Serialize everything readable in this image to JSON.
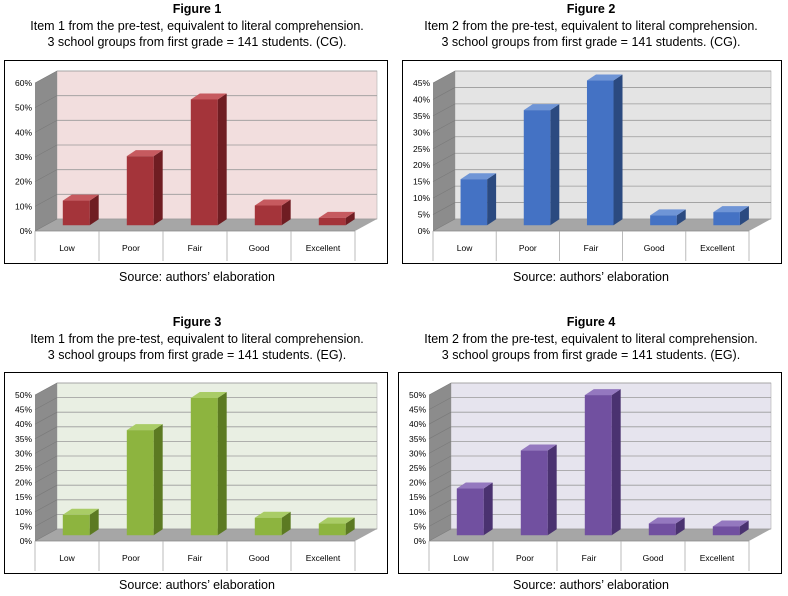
{
  "figures": [
    {
      "heading": "Figure 1",
      "line1": "Item 1 from the pre-test, equivalent to literal comprehension.",
      "line2": "3 school groups from first grade = 141 students. (CG).",
      "source": "Source: authors’ elaboration",
      "colors": {
        "front": "#a4343a",
        "side": "#6f1d22",
        "top": "#c65a5f",
        "wall": "#f2dede"
      },
      "chart_data": {
        "type": "bar",
        "categories": [
          "Low",
          "Poor",
          "Fair",
          "Good",
          "Excellent"
        ],
        "values": [
          10,
          28,
          51,
          8,
          3
        ],
        "yticks": [
          "0%",
          "10%",
          "20%",
          "30%",
          "40%",
          "50%",
          "60%"
        ],
        "ylim": [
          0,
          60
        ]
      }
    },
    {
      "heading": "Figure 2",
      "line1": "Item 2 from the pre-test, equivalent to literal comprehension.",
      "line2": "3 school groups from first grade = 141 students. (CG).",
      "source": "Source: authors’ elaboration",
      "colors": {
        "front": "#4472c4",
        "side": "#2b4a80",
        "top": "#6f95d6",
        "wall": "#e4e4e4"
      },
      "chart_data": {
        "type": "bar",
        "categories": [
          "Low",
          "Poor",
          "Fair",
          "Good",
          "Excellent"
        ],
        "values": [
          14,
          35,
          44,
          3,
          4
        ],
        "yticks": [
          "0%",
          "5%",
          "10%",
          "15%",
          "20%",
          "25%",
          "30%",
          "35%",
          "40%",
          "45%"
        ],
        "ylim": [
          0,
          45
        ]
      }
    },
    {
      "heading": "Figure 3",
      "line1": "Item 1 from the pre-test, equivalent to literal comprehension.",
      "line2": "3 school groups from first grade = 141 students. (EG).",
      "source": "Source: authors’ elaboration",
      "colors": {
        "front": "#8db43f",
        "side": "#5c7a22",
        "top": "#a9cc66",
        "wall": "#e9efe3"
      },
      "chart_data": {
        "type": "bar",
        "categories": [
          "Low",
          "Poor",
          "Fair",
          "Good",
          "Excellent"
        ],
        "values": [
          7,
          36,
          47,
          6,
          4
        ],
        "yticks": [
          "0%",
          "5%",
          "10%",
          "15%",
          "20%",
          "25%",
          "30%",
          "35%",
          "40%",
          "45%",
          "50%"
        ],
        "ylim": [
          0,
          50
        ]
      }
    },
    {
      "heading": "Figure 4",
      "line1": "Item 2 from the pre-test, equivalent to literal comprehension.",
      "line2": "3 school groups from first grade = 141 students. (EG).",
      "source": "Source: authors’ elaboration",
      "colors": {
        "front": "#7150a0",
        "side": "#4a3270",
        "top": "#9478bf",
        "wall": "#e6e4ee"
      },
      "chart_data": {
        "type": "bar",
        "categories": [
          "Low",
          "Poor",
          "Fair",
          "Good",
          "Excellent"
        ],
        "values": [
          16,
          29,
          48,
          4,
          3
        ],
        "yticks": [
          "0%",
          "5%",
          "10%",
          "15%",
          "20%",
          "25%",
          "30%",
          "35%",
          "40%",
          "45%",
          "50%"
        ],
        "ylim": [
          0,
          50
        ]
      }
    }
  ]
}
